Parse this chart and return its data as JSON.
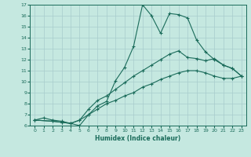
{
  "xlabel": "Humidex (Indice chaleur)",
  "xlim": [
    -0.5,
    23.5
  ],
  "ylim": [
    6,
    17
  ],
  "xticks": [
    0,
    1,
    2,
    3,
    4,
    5,
    6,
    7,
    8,
    9,
    10,
    11,
    12,
    13,
    14,
    15,
    16,
    17,
    18,
    19,
    20,
    21,
    22,
    23
  ],
  "yticks": [
    6,
    7,
    8,
    9,
    10,
    11,
    12,
    13,
    14,
    15,
    16,
    17
  ],
  "bg_color": "#c5e8e0",
  "line_color": "#1a6b5a",
  "grid_color": "#a8cccc",
  "lines": [
    {
      "x": [
        0,
        1,
        2,
        3,
        4,
        5,
        6,
        7,
        8,
        9,
        10,
        11,
        12,
        13,
        14,
        15,
        16,
        17,
        18,
        19,
        20,
        21,
        22,
        23
      ],
      "y": [
        6.5,
        6.7,
        6.5,
        6.4,
        6.2,
        6.0,
        7.0,
        7.8,
        8.2,
        10.1,
        11.3,
        13.2,
        17.0,
        16.0,
        14.4,
        16.2,
        16.1,
        15.8,
        13.8,
        12.7,
        12.0,
        11.5,
        11.2,
        10.5
      ]
    },
    {
      "x": [
        0,
        2,
        3,
        4,
        5,
        6,
        7,
        8,
        9,
        10,
        11,
        12,
        13,
        14,
        15,
        16,
        17,
        18,
        19,
        20,
        21,
        22,
        23
      ],
      "y": [
        6.5,
        6.4,
        6.3,
        6.2,
        6.5,
        7.5,
        8.3,
        8.7,
        9.3,
        9.9,
        10.5,
        11.0,
        11.5,
        12.0,
        12.5,
        12.8,
        12.2,
        12.1,
        11.9,
        12.1,
        11.5,
        11.2,
        10.5
      ]
    },
    {
      "x": [
        0,
        2,
        3,
        4,
        5,
        6,
        7,
        8,
        9,
        10,
        11,
        12,
        13,
        14,
        15,
        16,
        17,
        18,
        19,
        20,
        21,
        22,
        23
      ],
      "y": [
        6.5,
        6.4,
        6.3,
        6.2,
        6.5,
        7.0,
        7.5,
        8.0,
        8.3,
        8.7,
        9.0,
        9.5,
        9.8,
        10.2,
        10.5,
        10.8,
        11.0,
        11.0,
        10.8,
        10.5,
        10.3,
        10.3,
        10.5
      ]
    }
  ]
}
